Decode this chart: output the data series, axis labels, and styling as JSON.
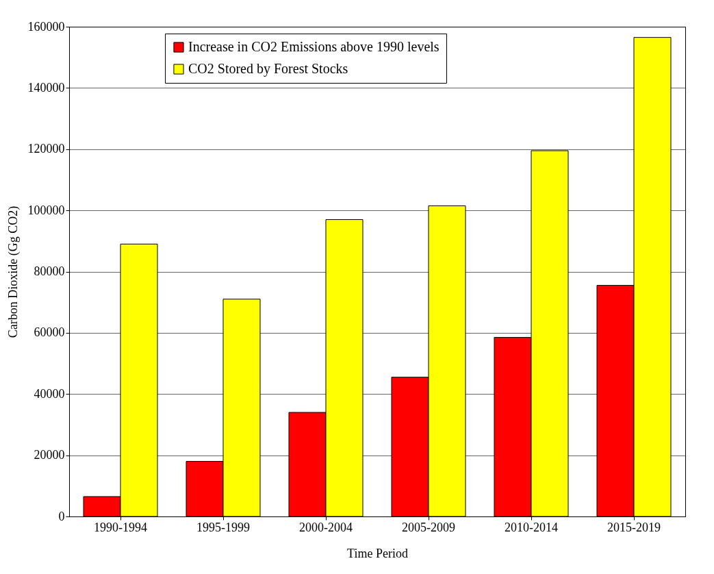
{
  "chart_data": {
    "type": "bar",
    "xlabel": "Time Period",
    "ylabel": "Carbon Dioxide (Gg CO2)",
    "categories": [
      "1990-1994",
      "1995-1999",
      "2000-2004",
      "2005-2009",
      "2010-2014",
      "2015-2019"
    ],
    "series": [
      {
        "name": "Increase in CO2 Emissions above 1990 levels",
        "color": "#ff0000",
        "values": [
          6500,
          18000,
          34000,
          45500,
          58500,
          75500
        ]
      },
      {
        "name": "CO2 Stored by Forest Stocks",
        "color": "#ffff00",
        "values": [
          89000,
          71000,
          97000,
          101500,
          119500,
          156500
        ]
      }
    ],
    "ylim": [
      0,
      160000
    ],
    "yticks": [
      0,
      20000,
      40000,
      60000,
      80000,
      100000,
      120000,
      140000,
      160000
    ],
    "grid": "y",
    "legend": "top"
  }
}
